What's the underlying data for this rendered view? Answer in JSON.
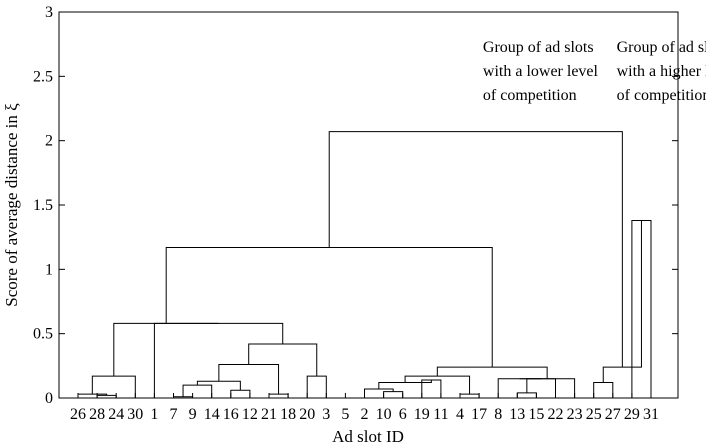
{
  "chart_data": {
    "type": "dendrogram",
    "title": "",
    "xlabel": "Ad slot ID",
    "ylabel": "Score of average distance in ξ",
    "ylim": [
      0,
      3
    ],
    "yticks": [
      "0",
      "0.5",
      "1",
      "1.5",
      "2",
      "2.5",
      "3"
    ],
    "leaf_order": [
      "26",
      "28",
      "24",
      "30",
      "1",
      "7",
      "9",
      "14",
      "16",
      "12",
      "21",
      "18",
      "20",
      "3",
      "5",
      "2",
      "10",
      "6",
      "19",
      "11",
      "4",
      "17",
      "8",
      "13",
      "15",
      "22",
      "23",
      "25",
      "27",
      "29",
      "31"
    ],
    "merges": [
      {
        "a": 1,
        "b": 2,
        "height": 0.02
      },
      {
        "a": 0,
        "b": "m0",
        "height": 0.03
      },
      {
        "a": "m1",
        "b": 3,
        "height": 0.17
      },
      {
        "a": 5,
        "b": 6,
        "height": 0.01
      },
      {
        "a": 8,
        "b": 9,
        "height": 0.06
      },
      {
        "a": "m3",
        "b": 7,
        "height": 0.1
      },
      {
        "a": "m4",
        "b": "m5",
        "height": 0.13
      },
      {
        "a": 10,
        "b": 11,
        "height": 0.03
      },
      {
        "a": "m6",
        "b": "m7",
        "height": 0.26
      },
      {
        "a": 12,
        "b": 13,
        "height": 0.17
      },
      {
        "a": "m8",
        "b": "m9",
        "height": 0.42
      },
      {
        "a": 4,
        "b": "m10",
        "height": 0.58
      },
      {
        "a": "m2",
        "b": "m11",
        "height": 0.58
      },
      {
        "a": 16,
        "b": 17,
        "height": 0.05
      },
      {
        "a": 15,
        "b": "m13",
        "height": 0.07
      },
      {
        "a": 18,
        "b": 19,
        "height": 0.14
      },
      {
        "a": "m14",
        "b": "m15",
        "height": 0.12
      },
      {
        "a": 20,
        "b": 21,
        "height": 0.03
      },
      {
        "a": "m16",
        "b": "m17",
        "height": 0.17
      },
      {
        "a": 23,
        "b": 24,
        "height": 0.04
      },
      {
        "a": "m19",
        "b": 25,
        "height": 0.15
      },
      {
        "a": 22,
        "b": "m20",
        "height": 0.15
      },
      {
        "a": 26,
        "b": "m21",
        "height": 0.15
      },
      {
        "a": "m18",
        "b": "m22",
        "height": 0.24
      },
      {
        "a": 27,
        "b": 28,
        "height": 0.12
      },
      {
        "a": 29,
        "b": 30,
        "height": 1.38
      },
      {
        "a": "m24",
        "b": "m25",
        "height": 0.24
      },
      {
        "a": "m12",
        "b": "m23",
        "height": 1.17
      },
      {
        "a": "m27",
        "b": "m26",
        "height": 2.07
      }
    ],
    "annotations": [
      {
        "lines": [
          "Group of ad slots",
          "with a lower level",
          "of competition"
        ],
        "x_leaf": 21.2,
        "y": 2.69
      },
      {
        "lines": [
          "Group of ad slots",
          "with a higher level",
          "of competition"
        ],
        "x_leaf": 28.2,
        "y": 2.69
      }
    ],
    "grid": false,
    "legend": "none"
  }
}
